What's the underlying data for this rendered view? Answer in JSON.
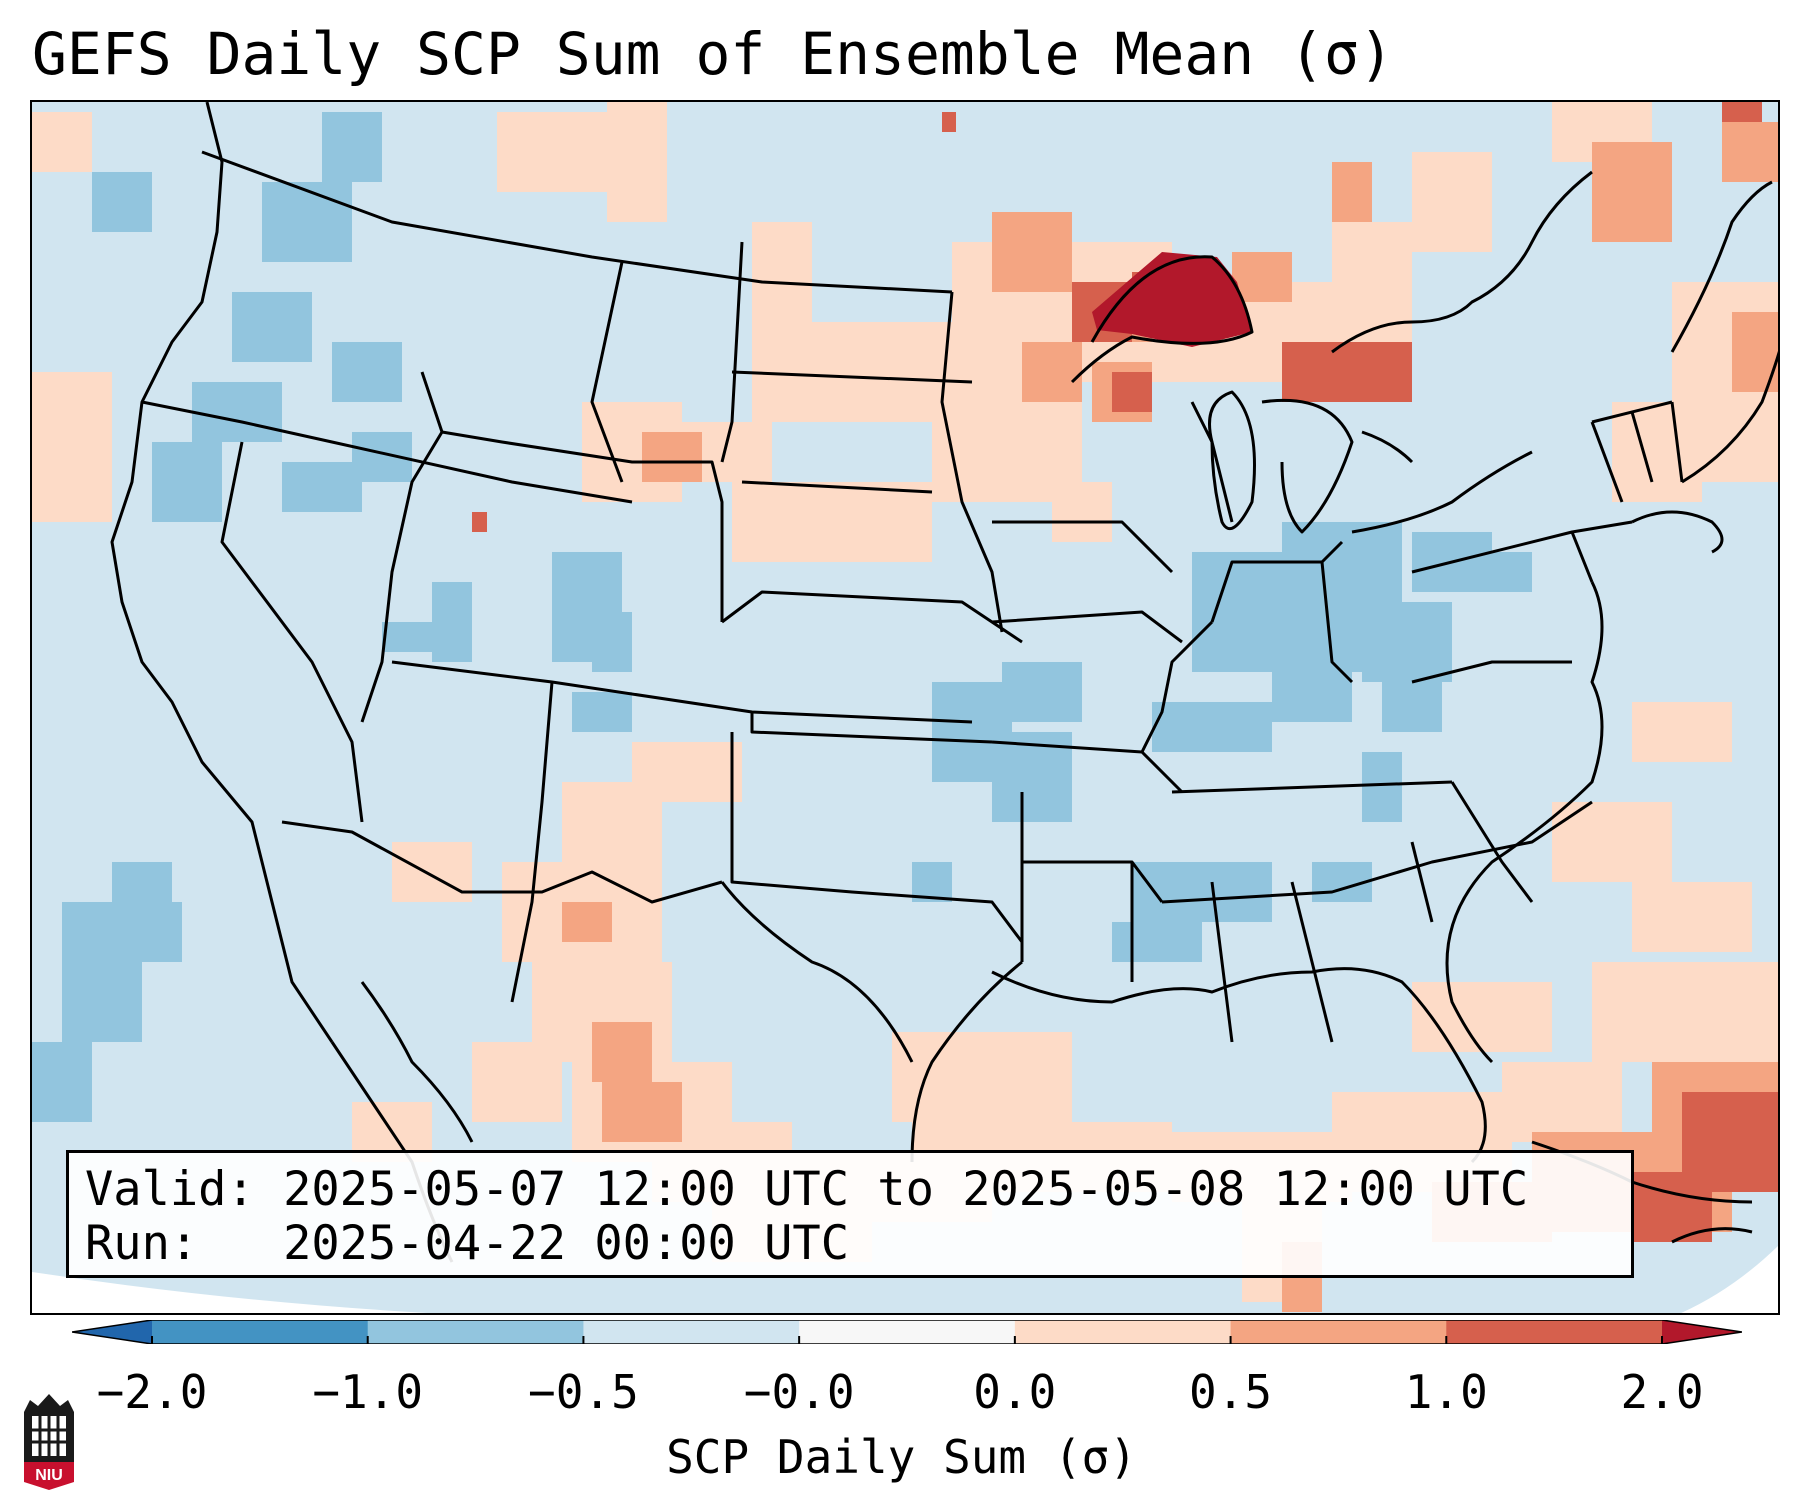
{
  "title": "GEFS Daily SCP Sum of Ensemble Mean (σ)",
  "info": {
    "valid": "Valid: 2025-05-07 12:00 UTC to 2025-05-08 12:00 UTC",
    "run": "Run:   2025-04-22 00:00 UTC"
  },
  "colorbar": {
    "label": "SCP Daily Sum (σ)",
    "ticks": [
      "−2.0",
      "−1.0",
      "−0.5",
      "−0.0",
      "0.0",
      "0.5",
      "1.0",
      "2.0"
    ],
    "bins": [
      {
        "from": -2.0,
        "to": -1.0,
        "color": "#4393c3"
      },
      {
        "from": -1.0,
        "to": -0.5,
        "color": "#92c5de"
      },
      {
        "from": -0.5,
        "to": 0.0,
        "color": "#d1e5f0"
      },
      {
        "from": 0.0,
        "to": 0.0,
        "color": "#f7f7f7"
      },
      {
        "from": 0.0,
        "to": 0.5,
        "color": "#fddbc7"
      },
      {
        "from": 0.5,
        "to": 1.0,
        "color": "#f4a582"
      },
      {
        "from": 1.0,
        "to": 2.0,
        "color": "#d6604d"
      }
    ],
    "under_color": "#2166ac",
    "over_color": "#b2182b"
  },
  "logo": {
    "text": "NIU",
    "color": "#c8102e"
  }
}
